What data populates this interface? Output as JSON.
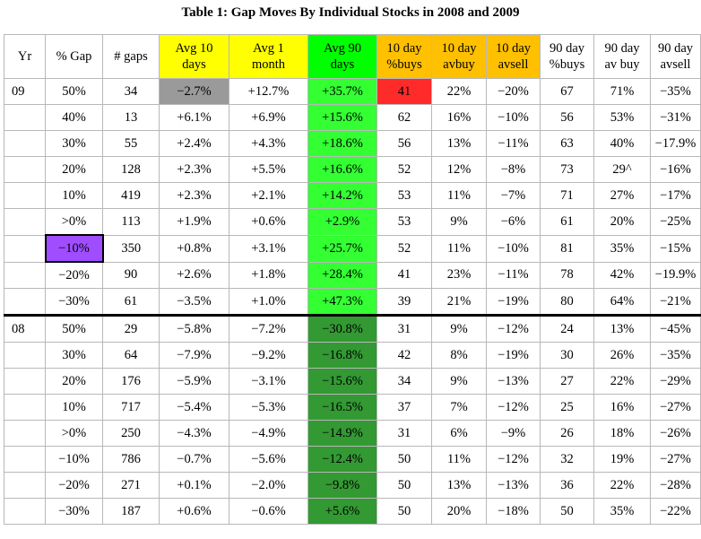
{
  "title": "Table 1: Gap Moves By Individual Stocks in 2008 and 2009",
  "colors": {
    "header_yellow": "#ffff00",
    "header_green": "#00ff00",
    "header_orange": "#ffc000",
    "cell_lightgreen": "#33ff33",
    "cell_darkgreen": "#339933",
    "cell_gray": "#9a9a9a",
    "cell_red": "#ff2a2a",
    "cell_purple": "#9f4dff"
  },
  "headers": [
    {
      "line1": "Yr",
      "line2": "",
      "hl": ""
    },
    {
      "line1": "% Gap",
      "line2": "",
      "hl": ""
    },
    {
      "line1": "# gaps",
      "line2": "",
      "hl": ""
    },
    {
      "line1": "Avg 10",
      "line2": "days",
      "hl": "h-yellow"
    },
    {
      "line1": "Avg 1",
      "line2": "month",
      "hl": "h-yellow"
    },
    {
      "line1": "Avg 90",
      "line2": "days",
      "hl": "h-green"
    },
    {
      "line1": "10 day",
      "line2": "%buys",
      "hl": "h-orange"
    },
    {
      "line1": "10 day",
      "line2": "avbuy",
      "hl": "h-orange"
    },
    {
      "line1": "10 day",
      "line2": "avsell",
      "hl": "h-orange"
    },
    {
      "line1": "90 day",
      "line2": "%buys",
      "hl": ""
    },
    {
      "line1": "90 day",
      "line2": "av buy",
      "hl": ""
    },
    {
      "line1": "90 day",
      "line2": "avsell",
      "hl": ""
    }
  ],
  "rows": [
    {
      "yr": "09",
      "gap": "50%",
      "gaps": "34",
      "avg10": "−2.7%",
      "avg1m": "+12.7%",
      "avg90": "+35.7%",
      "d10buys": "41",
      "d10avbuy": "22%",
      "d10avsell": "−20%",
      "d90buys": "67",
      "d90avbuy": "71%",
      "d90avsell": "−35%"
    },
    {
      "yr": "",
      "gap": "40%",
      "gaps": "13",
      "avg10": "+6.1%",
      "avg1m": "+6.9%",
      "avg90": "+15.6%",
      "d10buys": "62",
      "d10avbuy": "16%",
      "d10avsell": "−10%",
      "d90buys": "56",
      "d90avbuy": "53%",
      "d90avsell": "−31%"
    },
    {
      "yr": "",
      "gap": "30%",
      "gaps": "55",
      "avg10": "+2.4%",
      "avg1m": "+4.3%",
      "avg90": "+18.6%",
      "d10buys": "56",
      "d10avbuy": "13%",
      "d10avsell": "−11%",
      "d90buys": "63",
      "d90avbuy": "40%",
      "d90avsell": "−17.9%"
    },
    {
      "yr": "",
      "gap": "20%",
      "gaps": "128",
      "avg10": "+2.3%",
      "avg1m": "+5.5%",
      "avg90": "+16.6%",
      "d10buys": "52",
      "d10avbuy": "12%",
      "d10avsell": "−8%",
      "d90buys": "73",
      "d90avbuy": "29^",
      "d90avsell": "−16%"
    },
    {
      "yr": "",
      "gap": "10%",
      "gaps": "419",
      "avg10": "+2.3%",
      "avg1m": "+2.1%",
      "avg90": "+14.2%",
      "d10buys": "53",
      "d10avbuy": "11%",
      "d10avsell": "−7%",
      "d90buys": "71",
      "d90avbuy": "27%",
      "d90avsell": "−17%"
    },
    {
      "yr": "",
      "gap": ">0%",
      "gaps": "113",
      "avg10": "+1.9%",
      "avg1m": "+0.6%",
      "avg90": "+2.9%",
      "d10buys": "53",
      "d10avbuy": "9%",
      "d10avsell": "−6%",
      "d90buys": "61",
      "d90avbuy": "20%",
      "d90avsell": "−25%"
    },
    {
      "yr": "",
      "gap": "−10%",
      "gaps": "350",
      "avg10": "+0.8%",
      "avg1m": "+3.1%",
      "avg90": "+25.7%",
      "d10buys": "52",
      "d10avbuy": "11%",
      "d10avsell": "−10%",
      "d90buys": "81",
      "d90avbuy": "35%",
      "d90avsell": "−15%"
    },
    {
      "yr": "",
      "gap": "−20%",
      "gaps": "90",
      "avg10": "+2.6%",
      "avg1m": "+1.8%",
      "avg90": "+28.4%",
      "d10buys": "41",
      "d10avbuy": "23%",
      "d10avsell": "−11%",
      "d90buys": "78",
      "d90avbuy": "42%",
      "d90avsell": "−19.9%"
    },
    {
      "yr": "",
      "gap": "−30%",
      "gaps": "61",
      "avg10": "−3.5%",
      "avg1m": "+1.0%",
      "avg90": "+47.3%",
      "d10buys": "39",
      "d10avbuy": "21%",
      "d10avsell": "−19%",
      "d90buys": "80",
      "d90avbuy": "64%",
      "d90avsell": "−21%"
    },
    {
      "yr": "08",
      "gap": "50%",
      "gaps": "29",
      "avg10": "−5.8%",
      "avg1m": "−7.2%",
      "avg90": "−30.8%",
      "d10buys": "31",
      "d10avbuy": "9%",
      "d10avsell": "−12%",
      "d90buys": "24",
      "d90avbuy": "13%",
      "d90avsell": "−45%"
    },
    {
      "yr": "",
      "gap": "30%",
      "gaps": "64",
      "avg10": "−7.9%",
      "avg1m": "−9.2%",
      "avg90": "−16.8%",
      "d10buys": "42",
      "d10avbuy": "8%",
      "d10avsell": "−19%",
      "d90buys": "30",
      "d90avbuy": "26%",
      "d90avsell": "−35%"
    },
    {
      "yr": "",
      "gap": "20%",
      "gaps": "176",
      "avg10": "−5.9%",
      "avg1m": "−3.1%",
      "avg90": "−15.6%",
      "d10buys": "34",
      "d10avbuy": "9%",
      "d10avsell": "−13%",
      "d90buys": "27",
      "d90avbuy": "22%",
      "d90avsell": "−29%"
    },
    {
      "yr": "",
      "gap": "10%",
      "gaps": "717",
      "avg10": "−5.4%",
      "avg1m": "−5.3%",
      "avg90": "−16.5%",
      "d10buys": "37",
      "d10avbuy": "7%",
      "d10avsell": "−12%",
      "d90buys": "25",
      "d90avbuy": "16%",
      "d90avsell": "−27%"
    },
    {
      "yr": "",
      "gap": ">0%",
      "gaps": "250",
      "avg10": "−4.3%",
      "avg1m": "−4.9%",
      "avg90": "−14.9%",
      "d10buys": "31",
      "d10avbuy": "6%",
      "d10avsell": "−9%",
      "d90buys": "26",
      "d90avbuy": "18%",
      "d90avsell": "−26%"
    },
    {
      "yr": "",
      "gap": "−10%",
      "gaps": "786",
      "avg10": "−0.7%",
      "avg1m": "−5.6%",
      "avg90": "−12.4%",
      "d10buys": "50",
      "d10avbuy": "11%",
      "d10avsell": "−12%",
      "d90buys": "32",
      "d90avbuy": "19%",
      "d90avsell": "−27%"
    },
    {
      "yr": "",
      "gap": "−20%",
      "gaps": "271",
      "avg10": "+0.1%",
      "avg1m": "−2.0%",
      "avg90": "−9.8%",
      "d10buys": "50",
      "d10avbuy": "13%",
      "d10avsell": "−13%",
      "d90buys": "36",
      "d90avbuy": "22%",
      "d90avsell": "−28%"
    },
    {
      "yr": "",
      "gap": "−30%",
      "gaps": "187",
      "avg10": "+0.6%",
      "avg1m": "−0.6%",
      "avg90": "+5.6%",
      "d10buys": "50",
      "d10avbuy": "20%",
      "d10avsell": "−18%",
      "d90buys": "50",
      "d90avbuy": "35%",
      "d90avsell": "−22%"
    }
  ]
}
